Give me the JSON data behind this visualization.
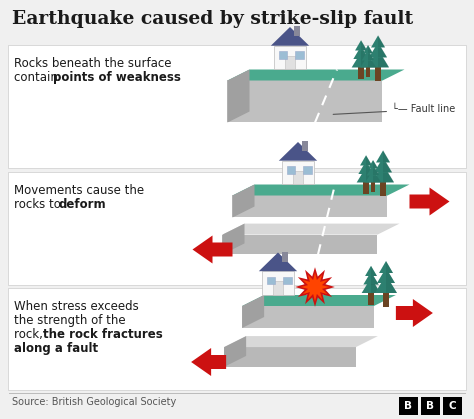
{
  "title": "Earthquake caused by strike-slip fault",
  "bg_color": "#f0f0f0",
  "panel_bg": "#ffffff",
  "panel_border": "#cccccc",
  "green_top": "#4aaa8e",
  "green_shade": "#3d8f77",
  "gray_side": "#c0c0c0",
  "gray_dark": "#a0a0a0",
  "gray_light": "#d8d8d8",
  "gray_mid": "#b8b8b8",
  "arrow_color": "#cc1111",
  "tree_color": "#2d8070",
  "tree_dark": "#1f5f54",
  "tree_trunk": "#6b4423",
  "house_wall": "#f8f8f8",
  "house_roof": "#4a5488",
  "house_win": "#9bbdd4",
  "text_color": "#1a1a1a",
  "text_gray": "#555555",
  "source_text": "Source: British Geological Society",
  "panel1_line1": "Rocks beneath the surface",
  "panel1_line2": "contain ",
  "panel1_bold": "points of weakness",
  "panel2_line1": "Movements cause the",
  "panel2_line2": "rocks to ",
  "panel2_bold": "deform",
  "panel3_line1": "When stress exceeds",
  "panel3_line2": "the strength of the",
  "panel3_line3": "rock, ",
  "panel3_bold1": "the rock fractures",
  "panel3_bold2": "along a fault",
  "fault_label": "└— Fault line",
  "white": "#ffffff",
  "explosion_color": "#cc1111",
  "spark_color": "#ff6600"
}
